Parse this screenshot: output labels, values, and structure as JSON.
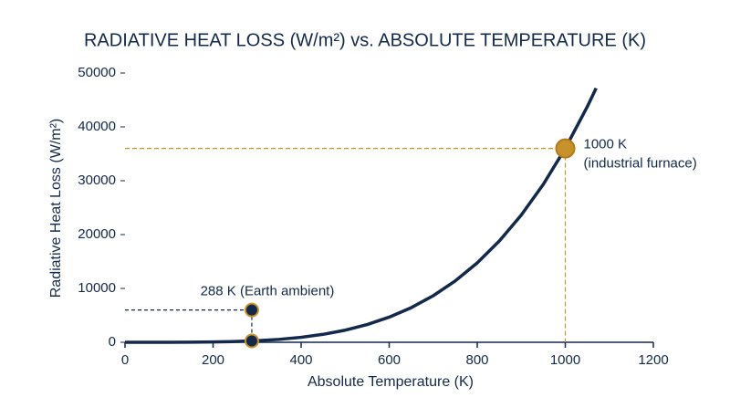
{
  "chart_data": {
    "type": "line",
    "title": "RADIATIVE HEAT LOSS (W/m²) vs. ABSOLUTE TEMPERATURE (K)",
    "x_label": "Absolute Temperature (K)",
    "y_label": "Radiative Heat Loss (W/m²)",
    "x": [
      0,
      50,
      100,
      150,
      200,
      250,
      300,
      350,
      400,
      450,
      500,
      550,
      600,
      650,
      700,
      750,
      800,
      850,
      900,
      950,
      1000,
      1050,
      1070
    ],
    "values": [
      0,
      0.2,
      3.6,
      18.2,
      57.6,
      140.6,
      291.6,
      540.2,
      921.6,
      1476.2,
      2250,
      3294,
      4665.6,
      6426,
      8643.6,
      11391,
      14746,
      18792,
      23620,
      29322,
      36000,
      43758,
      47190
    ],
    "color": "#13294b",
    "xlim": [
      0,
      1200
    ],
    "xticks": [
      0,
      200,
      400,
      600,
      800,
      1000,
      1200
    ],
    "ylim": [
      0,
      50000
    ],
    "yticks": [
      0,
      10000,
      20000,
      30000,
      40000,
      50000
    ],
    "points": [
      {
        "x": 288,
        "y": 250,
        "color": "#13294b",
        "edge": "#c8922a",
        "guide": "#13294b"
      },
      {
        "x": 288,
        "y": 6000,
        "color": "#13294b",
        "edge": "#c8922a",
        "guide": "#13294b"
      },
      {
        "x": 1000,
        "y": 36000,
        "color": "#c8922a",
        "edge": "#b07a1a",
        "guide": "#c8922a"
      }
    ],
    "annotations": [
      {
        "text": "288 K (Earth ambient)",
        "color": "#13294b"
      },
      {
        "text": "1000 K",
        "color": "#c8922a"
      },
      {
        "text": "(industrial furnace)",
        "color": "#c8922a"
      }
    ]
  }
}
